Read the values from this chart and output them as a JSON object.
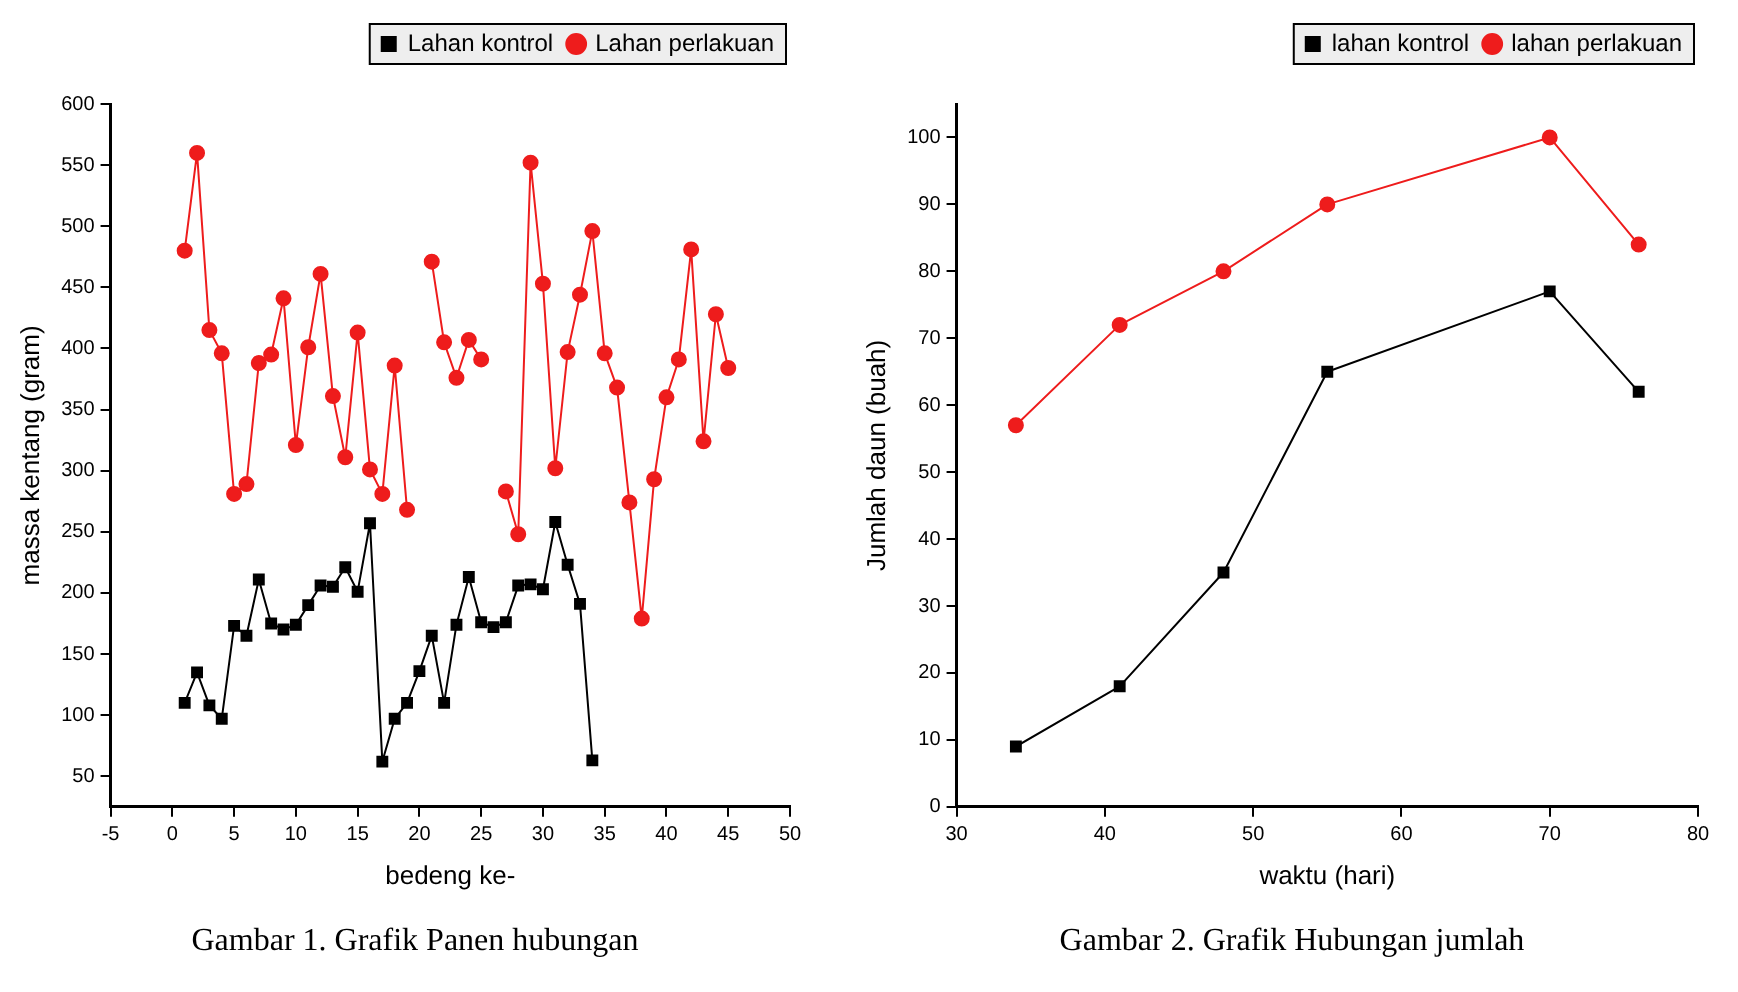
{
  "chart_data": [
    {
      "type": "line",
      "xlabel": "bedeng ke-",
      "ylabel": "massa kentang (gram)",
      "xlim": [
        -5,
        50
      ],
      "xticks": [
        -5,
        0,
        5,
        10,
        15,
        20,
        25,
        30,
        35,
        40,
        45,
        50
      ],
      "ylim": [
        25,
        600
      ],
      "yticks": [
        50,
        100,
        150,
        200,
        250,
        300,
        350,
        400,
        450,
        500,
        550,
        600
      ],
      "grid": false,
      "legend": "top right",
      "annotations": [
        "Gambar 1. Grafik Panen hubungan"
      ],
      "series": [
        {
          "name": "Lahan kontrol",
          "color": "#000000",
          "marker": "square",
          "x": [
            1,
            2,
            3,
            4,
            5,
            6,
            7,
            8,
            9,
            10,
            11,
            12,
            13,
            14,
            15,
            16,
            17,
            18,
            19,
            20,
            21,
            22,
            23,
            24,
            25,
            26,
            27,
            28,
            29,
            30,
            31,
            32,
            33,
            34
          ],
          "values": [
            110,
            135,
            108,
            97,
            173,
            165,
            211,
            175,
            170,
            174,
            190,
            206,
            205,
            221,
            201,
            257,
            62,
            97,
            110,
            136,
            165,
            110,
            174,
            213,
            176,
            172,
            176,
            206,
            207,
            203,
            258,
            223,
            191,
            63
          ]
        },
        {
          "name": "Lahan perlakuan",
          "color": "#ee1c1c",
          "marker": "circle",
          "x": [
            1,
            2,
            3,
            4,
            5,
            6,
            7,
            8,
            9,
            10,
            11,
            12,
            13,
            14,
            15,
            16,
            17,
            18,
            19,
            20,
            21,
            22,
            23,
            24,
            25,
            26,
            27,
            28,
            29,
            30,
            31,
            32,
            33,
            34,
            35,
            36,
            37,
            38,
            39,
            40,
            41,
            42,
            43,
            44,
            45
          ],
          "values": [
            480,
            560,
            415,
            396,
            281,
            289,
            388,
            395,
            441,
            321,
            401,
            461,
            361,
            311,
            413,
            301,
            281,
            386,
            268,
            null,
            471,
            405,
            376,
            407,
            391,
            null,
            283,
            248,
            552,
            453,
            302,
            397,
            444,
            496,
            396,
            368,
            274,
            179,
            293,
            360,
            391,
            481,
            324,
            428,
            384
          ]
        }
      ]
    },
    {
      "type": "line",
      "xlabel": "waktu (hari)",
      "ylabel": "Jumlah daun (buah)",
      "xlim": [
        30,
        80
      ],
      "xticks": [
        30,
        40,
        50,
        60,
        70,
        80
      ],
      "ylim": [
        0,
        105
      ],
      "yticks": [
        0,
        10,
        20,
        30,
        40,
        50,
        60,
        70,
        80,
        90,
        100
      ],
      "grid": false,
      "legend": "top right",
      "annotations": [
        "Gambar 2. Grafik Hubungan jumlah"
      ],
      "x": [
        34,
        41,
        48,
        55,
        70,
        76
      ],
      "series": [
        {
          "name": "lahan kontrol",
          "color": "#000000",
          "marker": "square",
          "values": [
            9,
            18,
            35,
            65,
            77,
            62
          ]
        },
        {
          "name": "lahan perlakuan",
          "color": "#ee1c1c",
          "marker": "circle",
          "values": [
            57,
            72,
            80,
            90,
            100,
            84
          ]
        }
      ]
    }
  ]
}
